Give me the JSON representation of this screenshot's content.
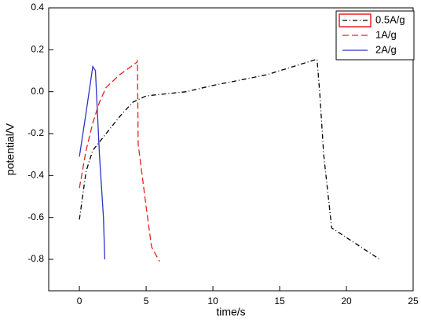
{
  "chart_data": {
    "type": "line",
    "x_label": "time/s",
    "y_label": "potential/V",
    "xlim": [
      -2.3,
      25
    ],
    "xticks": [
      0,
      5,
      10,
      15,
      20,
      25
    ],
    "ylim": [
      -0.95,
      0.4
    ],
    "yticks": [
      {
        "value": 0.4,
        "label": "0.4"
      },
      {
        "value": 0.2,
        "label": "0.2"
      },
      {
        "value": 0,
        "label": "0.0"
      },
      {
        "value": -0.2,
        "label": "-0.2"
      },
      {
        "value": -0.4,
        "label": "-0.4"
      },
      {
        "value": -0.6,
        "label": "-0.6"
      },
      {
        "value": -0.8,
        "label": "-0.8"
      }
    ],
    "legend": "upper right",
    "series": [
      {
        "name": "0.5A/g",
        "color": "#000000",
        "dash": "6,3,1,3",
        "x": [
          0,
          0.5,
          1,
          2,
          3,
          4,
          5,
          8,
          10,
          14,
          17.8,
          18,
          18.3,
          18.9,
          22.5
        ],
        "values": [
          -0.61,
          -0.38,
          -0.28,
          -0.2,
          -0.12,
          -0.05,
          -0.02,
          0.0,
          0.03,
          0.08,
          0.155,
          0.0,
          -0.3,
          -0.65,
          -0.8
        ]
      },
      {
        "name": "1A/g",
        "color": "#e8201e",
        "dash": "8,4",
        "x": [
          0,
          0.5,
          1,
          1.5,
          2,
          3,
          4.3,
          4.35,
          4.4,
          5,
          5.4,
          6
        ],
        "values": [
          -0.46,
          -0.28,
          -0.15,
          -0.05,
          0.02,
          0.08,
          0.14,
          0.15,
          -0.25,
          -0.55,
          -0.74,
          -0.81
        ]
      },
      {
        "name": "2A/g",
        "color": "#2a34c8",
        "dash": "",
        "x": [
          0,
          0.5,
          1,
          1.2,
          1.5,
          1.8,
          1.9
        ],
        "values": [
          -0.31,
          -0.1,
          0.12,
          0.1,
          -0.3,
          -0.6,
          -0.8
        ]
      }
    ]
  }
}
